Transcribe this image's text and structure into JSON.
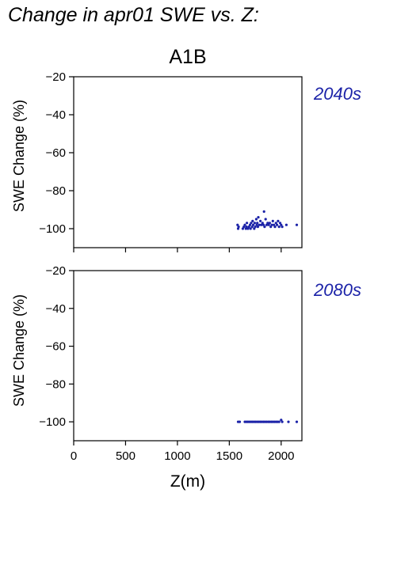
{
  "title": "Change in apr01 SWE vs. Z:",
  "scenario": "A1B",
  "colors": {
    "points": "#1c23a8",
    "decade_label": "#1c23a8",
    "axes": "#000000"
  },
  "chart_data": [
    {
      "type": "scatter",
      "panel_label": "2040s",
      "ylabel": "SWE Change (%)",
      "xlabel": "",
      "xlim": [
        0,
        2200
      ],
      "ylim": [
        -110,
        -20
      ],
      "yticks": [
        -20,
        -40,
        -60,
        -80,
        -100
      ],
      "xticks": [
        0,
        500,
        1000,
        1500,
        2000
      ],
      "show_xtick_labels": false,
      "grid": false,
      "series": [
        {
          "x": [
            1580,
            1585,
            1590,
            1630,
            1640,
            1650,
            1660,
            1665,
            1670,
            1680,
            1690,
            1700,
            1705,
            1710,
            1720,
            1725,
            1730,
            1740,
            1745,
            1750,
            1760,
            1765,
            1770,
            1775,
            1780,
            1790,
            1800,
            1810,
            1820,
            1830,
            1835,
            1840,
            1850,
            1860,
            1870,
            1880,
            1890,
            1900,
            1910,
            1920,
            1930,
            1940,
            1950,
            1960,
            1970,
            1980,
            1990,
            2000,
            2010,
            2050,
            2150
          ],
          "y": [
            -98,
            -100,
            -99,
            -100,
            -99,
            -98,
            -100,
            -99,
            -97,
            -100,
            -99,
            -98,
            -100,
            -97,
            -99,
            -96,
            -98,
            -100,
            -97,
            -99,
            -95,
            -98,
            -97,
            -99,
            -94,
            -98,
            -96,
            -98,
            -97,
            -98,
            -91,
            -99,
            -95,
            -98,
            -97,
            -98,
            -97,
            -99,
            -98,
            -96,
            -98,
            -99,
            -97,
            -98,
            -96,
            -99,
            -97,
            -98,
            -99,
            -98,
            -98
          ]
        }
      ]
    },
    {
      "type": "scatter",
      "panel_label": "2080s",
      "ylabel": "SWE Change (%)",
      "xlabel": "Z(m)",
      "xlim": [
        0,
        2200
      ],
      "ylim": [
        -110,
        -20
      ],
      "yticks": [
        -20,
        -40,
        -60,
        -80,
        -100
      ],
      "xticks": [
        0,
        500,
        1000,
        1500,
        2000
      ],
      "show_xtick_labels": true,
      "grid": false,
      "series": [
        {
          "x": [
            1585,
            1600,
            1650,
            1665,
            1680,
            1695,
            1710,
            1725,
            1740,
            1755,
            1770,
            1785,
            1800,
            1815,
            1830,
            1845,
            1860,
            1875,
            1890,
            1905,
            1920,
            1935,
            1950,
            1965,
            1980,
            2000,
            2010,
            2070,
            2150
          ],
          "y": [
            -100,
            -100,
            -100,
            -100,
            -100,
            -100,
            -100,
            -100,
            -100,
            -100,
            -100,
            -100,
            -100,
            -100,
            -100,
            -100,
            -100,
            -100,
            -100,
            -100,
            -100,
            -100,
            -100,
            -100,
            -100,
            -99,
            -100,
            -100,
            -100
          ]
        }
      ]
    }
  ]
}
